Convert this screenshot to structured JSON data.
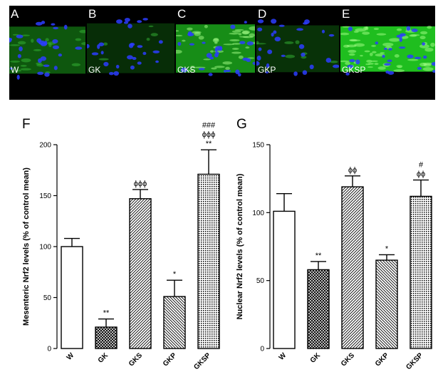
{
  "micrographs": [
    {
      "letter": "A",
      "group": "W",
      "signal": 0.35
    },
    {
      "letter": "B",
      "group": "GK",
      "signal": 0.08
    },
    {
      "letter": "C",
      "group": "GKS",
      "signal": 0.7
    },
    {
      "letter": "D",
      "group": "GKP",
      "signal": 0.12
    },
    {
      "letter": "E",
      "group": "GKSP",
      "signal": 1.0
    }
  ],
  "colors": {
    "bar_fill": "#ffffff",
    "bar_stroke": "#000000",
    "nuclei": "#2b3dff",
    "nrf2": "#22d322"
  },
  "chart_data": [
    {
      "panel": "F",
      "type": "bar",
      "categories": [
        "W",
        "GK",
        "GKS",
        "GKP",
        "GKSP"
      ],
      "values": [
        100,
        21,
        147,
        51,
        171
      ],
      "errors": [
        8,
        8,
        9,
        16,
        24
      ],
      "patterns": [
        "none",
        "crosshatch",
        "diag-right",
        "diag-left",
        "dots"
      ],
      "annotations": [
        [],
        [
          "**"
        ],
        [
          "ϕϕϕ"
        ],
        [
          "*"
        ],
        [
          "###",
          "ϕϕϕ",
          "**"
        ]
      ],
      "ylabel": "Mesenteric Nrf2 levels (% of control mean)",
      "ylim": [
        0,
        200
      ],
      "yticks": [
        0,
        50,
        100,
        150,
        200
      ]
    },
    {
      "panel": "G",
      "type": "bar",
      "categories": [
        "W",
        "GK",
        "GKS",
        "GKP",
        "GKSP"
      ],
      "values": [
        101,
        58,
        119,
        65,
        112
      ],
      "errors": [
        13,
        6,
        8,
        4,
        12
      ],
      "patterns": [
        "none",
        "crosshatch",
        "diag-right",
        "diag-left",
        "dots"
      ],
      "annotations": [
        [],
        [
          "**"
        ],
        [
          "ϕϕ"
        ],
        [
          "*"
        ],
        [
          "#",
          "ϕϕ"
        ]
      ],
      "ylabel": "Nuclear Nrf2 levels (% of control mean)",
      "ylim": [
        0,
        150
      ],
      "yticks": [
        0,
        50,
        100,
        150
      ]
    }
  ]
}
